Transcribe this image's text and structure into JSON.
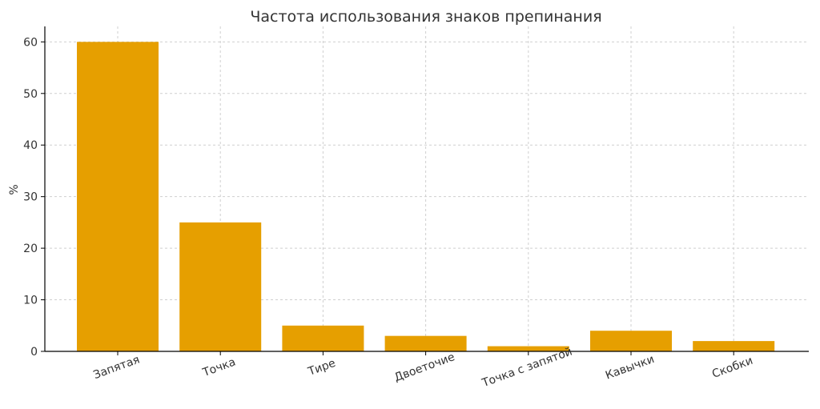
{
  "chart_data": {
    "type": "bar",
    "title": "Частота использования знаков препинания",
    "xlabel": "",
    "ylabel": "%",
    "categories": [
      "Запятая",
      "Точка",
      "Тире",
      "Двоеточие",
      "Точка с запятой",
      "Кавычки",
      "Скобки"
    ],
    "values": [
      60,
      25,
      5,
      3,
      1,
      4,
      2
    ],
    "ylim": [
      0,
      63
    ],
    "yticks": [
      0,
      10,
      20,
      30,
      40,
      50,
      60
    ],
    "grid": true,
    "bar_color": "#E69F00"
  }
}
